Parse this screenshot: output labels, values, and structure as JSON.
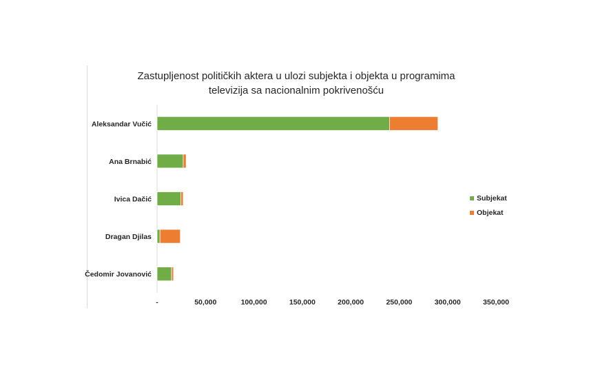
{
  "chart_data": {
    "type": "bar",
    "orientation": "horizontal",
    "stacked": true,
    "title_line1": "Zastupljenost političkih aktera u ulozi subjekta i objekta u programima",
    "title_line2": "televizija sa nacionalnim pokrivenošću",
    "categories": [
      "Aleksandar Vučić",
      "Ana Brnabić",
      "Ivica Dačić",
      "Dragan Djilas",
      "Čedomir Jovanović"
    ],
    "series": [
      {
        "name": "Subjekat",
        "color": "#70ad47",
        "values": [
          240000,
          27000,
          24500,
          3000,
          15000
        ]
      },
      {
        "name": "Objekat",
        "color": "#ed7d31",
        "values": [
          50000,
          3000,
          2500,
          21000,
          2000
        ]
      }
    ],
    "xlim": [
      0,
      350000
    ],
    "xticks": [
      "-",
      "50,000",
      "100,000",
      "150,000",
      "200,000",
      "250,000",
      "300,000",
      "350,000"
    ],
    "legend_position": "right",
    "grid": false
  }
}
